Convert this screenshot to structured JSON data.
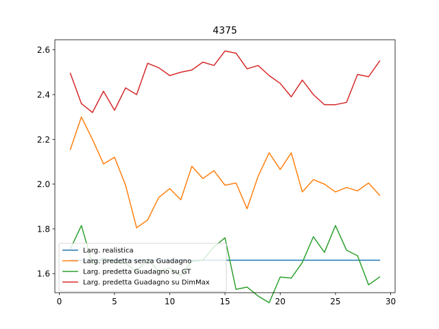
{
  "chart_data": {
    "type": "line",
    "title": "4375",
    "xlabel": "",
    "ylabel": "",
    "xlim": [
      -0.4,
      30.4
    ],
    "ylim": [
      1.515,
      2.645
    ],
    "xticks": [
      0,
      5,
      10,
      15,
      20,
      25,
      30
    ],
    "yticks": [
      1.6,
      1.8,
      2.0,
      2.2,
      2.4,
      2.6
    ],
    "grid": false,
    "legend_position": "lower-left",
    "x": [
      1,
      2,
      3,
      4,
      5,
      6,
      7,
      8,
      9,
      10,
      11,
      12,
      13,
      14,
      15,
      16,
      17,
      18,
      19,
      20,
      21,
      22,
      23,
      24,
      25,
      26,
      27,
      28,
      29
    ],
    "series": [
      {
        "name": "Larg. realistica",
        "color": "#1f77b4",
        "values": [
          1.66,
          1.66,
          1.66,
          1.66,
          1.66,
          1.66,
          1.66,
          1.66,
          1.66,
          1.66,
          1.66,
          1.66,
          1.66,
          1.66,
          1.66,
          1.66,
          1.66,
          1.66,
          1.66,
          1.66,
          1.66,
          1.66,
          1.66,
          1.66,
          1.66,
          1.66,
          1.66,
          1.66,
          1.66
        ]
      },
      {
        "name": "Larg. predetta senza Guadagno",
        "color": "#ff7f0e",
        "values": [
          2.155,
          2.3,
          2.2,
          2.09,
          2.12,
          1.995,
          1.805,
          1.84,
          1.94,
          1.98,
          1.93,
          2.08,
          2.025,
          2.06,
          1.995,
          2.005,
          1.89,
          2.035,
          2.14,
          2.065,
          2.14,
          1.965,
          2.02,
          2.0,
          1.965,
          1.985,
          1.97,
          2.005,
          1.95
        ]
      },
      {
        "name": "Larg. predetta Guadagno su GT",
        "color": "#2ca02c",
        "values": [
          1.71,
          1.815,
          1.645,
          1.67,
          1.65,
          1.645,
          1.61,
          1.665,
          1.61,
          1.625,
          1.59,
          1.655,
          1.66,
          1.72,
          1.76,
          1.53,
          1.54,
          1.5,
          1.47,
          1.585,
          1.58,
          1.65,
          1.765,
          1.695,
          1.815,
          1.705,
          1.68,
          1.55,
          1.585
        ]
      },
      {
        "name": "Larg. predetta Guadagno su DimMax",
        "color": "#d62728",
        "values": [
          2.495,
          2.36,
          2.32,
          2.415,
          2.33,
          2.43,
          2.4,
          2.54,
          2.52,
          2.485,
          2.5,
          2.51,
          2.545,
          2.53,
          2.595,
          2.585,
          2.515,
          2.53,
          2.485,
          2.45,
          2.39,
          2.465,
          2.4,
          2.355,
          2.355,
          2.365,
          2.49,
          2.48,
          2.55
        ]
      }
    ]
  }
}
